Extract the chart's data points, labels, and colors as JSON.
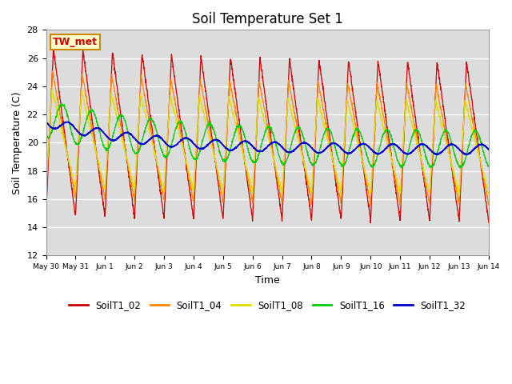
{
  "title": "Soil Temperature Set 1",
  "xlabel": "Time",
  "ylabel": "Soil Temperature (C)",
  "ylim": [
    12,
    28
  ],
  "yticks": [
    12,
    14,
    16,
    18,
    20,
    22,
    24,
    26,
    28
  ],
  "bg_color": "#dcdcdc",
  "annotation_text": "TW_met",
  "annotation_color": "#cc0000",
  "annotation_bg": "#ffffcc",
  "annotation_border": "#cc8800",
  "series_colors": {
    "SoilT1_02": "#cc0000",
    "SoilT1_04": "#ff8800",
    "SoilT1_08": "#dddd00",
    "SoilT1_16": "#00cc00",
    "SoilT1_32": "#0000cc"
  },
  "legend_labels": [
    "SoilT1_02",
    "SoilT1_04",
    "SoilT1_08",
    "SoilT1_16",
    "SoilT1_32"
  ],
  "num_days": 15,
  "xtick_labels": [
    "May 30",
    "May 31",
    "Jun 1",
    "Jun 2",
    "Jun 3",
    "Jun 4",
    "Jun 5",
    "Jun 6",
    "Jun 7",
    "Jun 8",
    "Jun 9",
    "Jun 10",
    "Jun 11",
    "Jun 12",
    "Jun 13",
    "Jun 14"
  ],
  "points_per_day": 144
}
